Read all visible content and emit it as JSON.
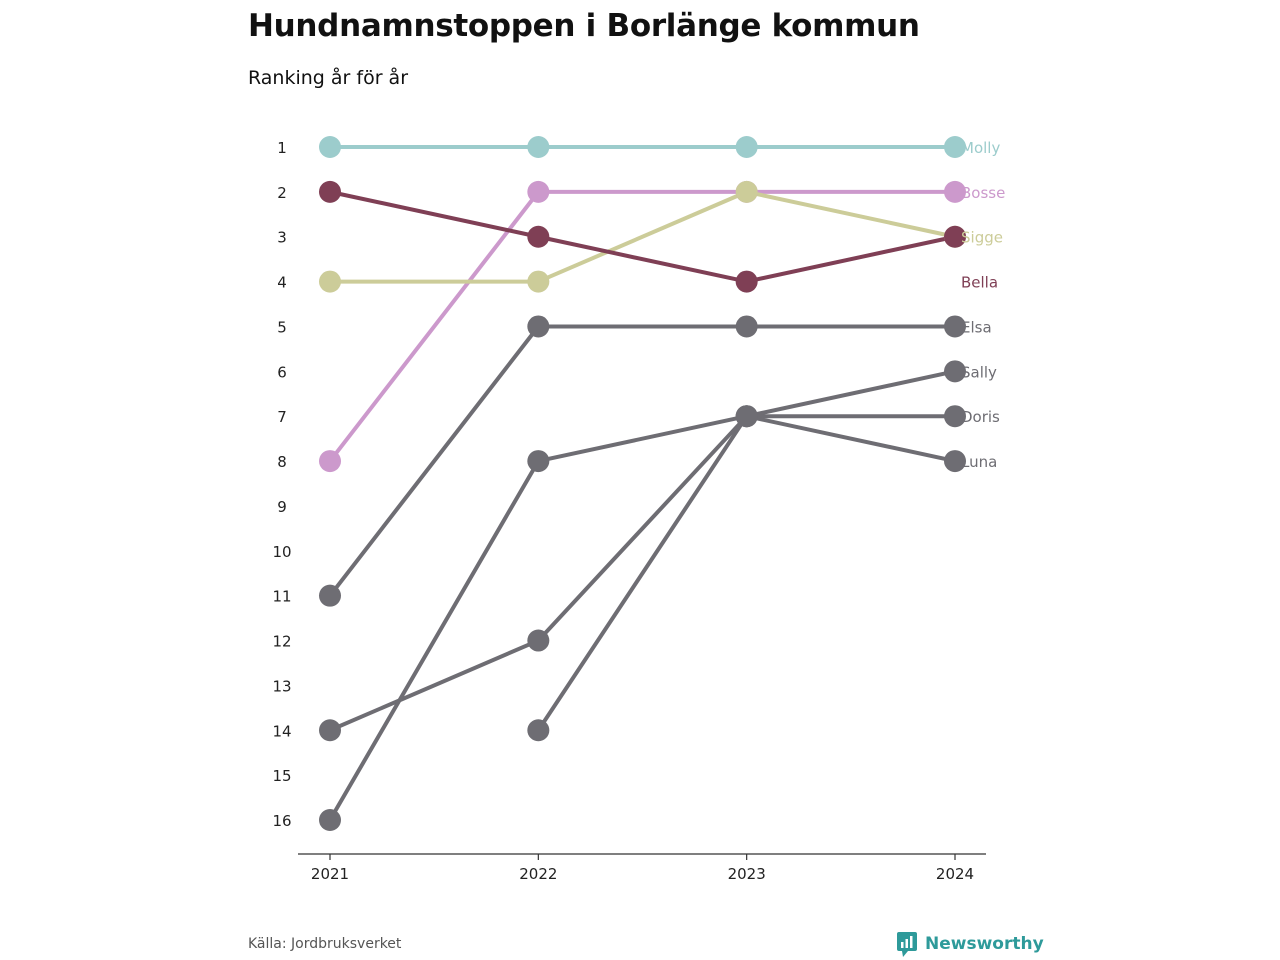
{
  "header": {
    "title": "Hundnamnstoppen i Borlänge kommun",
    "subtitle": "Ranking år för år"
  },
  "footer": {
    "source": "Källa: Jordbruksverket",
    "brand": "Newsworthy",
    "brand_icon": "bar-chart-speech-icon",
    "brand_color": "#2e9a9a"
  },
  "chart_data": {
    "type": "line",
    "title": "Hundnamnstoppen i Borlänge kommun",
    "subtitle": "Ranking år för år",
    "x": [
      "2021",
      "2022",
      "2023",
      "2024"
    ],
    "y_ticks": [
      "1",
      "2",
      "3",
      "4",
      "5",
      "6",
      "7",
      "8",
      "9",
      "10",
      "11",
      "12",
      "13",
      "14",
      "15",
      "16"
    ],
    "ylim": [
      1,
      16
    ],
    "y_inverted": true,
    "grid": false,
    "legend": "direct-labels-right",
    "series": [
      {
        "name": "Molly",
        "color": "#9ccccc",
        "values": [
          1,
          1,
          1,
          1
        ]
      },
      {
        "name": "Bosse",
        "color": "#cc99cc",
        "values": [
          8,
          2,
          2,
          2
        ]
      },
      {
        "name": "Sigge",
        "color": "#cccc99",
        "values": [
          4,
          4,
          2,
          3
        ]
      },
      {
        "name": "Bella",
        "color": "#7f3f55",
        "values": [
          2,
          3,
          4,
          3
        ]
      },
      {
        "name": "Elsa",
        "color": "#6e6d73",
        "values": [
          11,
          5,
          5,
          5
        ]
      },
      {
        "name": "Sally",
        "color": "#6e6d73",
        "values": [
          14,
          12,
          7,
          6
        ]
      },
      {
        "name": "Doris",
        "color": "#6e6d73",
        "values": [
          16,
          8,
          7,
          7
        ]
      },
      {
        "name": "Luna",
        "color": "#6e6d73",
        "values": [
          null,
          14,
          7,
          8
        ]
      }
    ]
  }
}
